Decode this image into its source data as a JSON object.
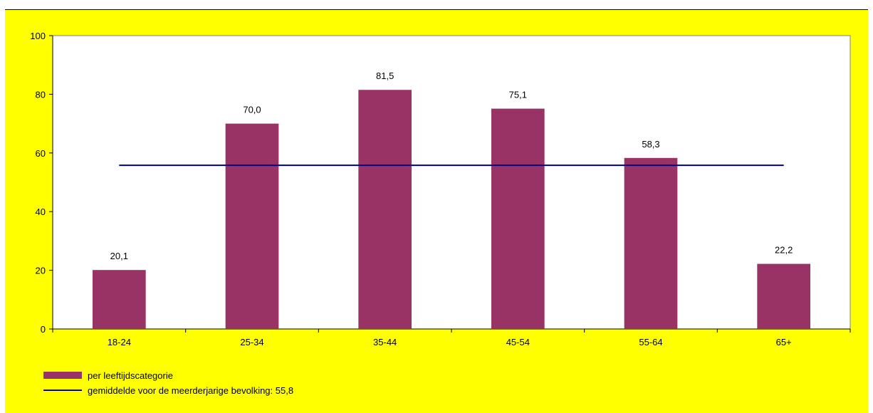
{
  "chart_data": {
    "type": "bar",
    "categories": [
      "18-24",
      "25-34",
      "35-44",
      "45-54",
      "55-64",
      "65+"
    ],
    "series": [
      {
        "name": "per leeftijdscategorie",
        "values": [
          20.1,
          70.0,
          81.5,
          75.1,
          58.3,
          22.2
        ]
      }
    ],
    "data_labels": [
      "20,1",
      "70,0",
      "81,5",
      "75,1",
      "58,3",
      "22,2"
    ],
    "reference_line": {
      "name": "gemiddelde voor de meerderjarige bevolking: 55,8",
      "value": 55.8
    },
    "y_ticks": [
      "0",
      "20",
      "40",
      "60",
      "80",
      "100"
    ],
    "ylim": [
      0,
      100
    ],
    "title": "",
    "xlabel": "",
    "ylabel": "",
    "grid": false,
    "legend_position": "bottom-left"
  },
  "colors": {
    "background": "#ffff00",
    "plot_area": "#ffffff",
    "bar": "#993366",
    "line": "#000080"
  },
  "legend": {
    "bar_label": "per leeftijdscategorie",
    "line_label": "gemiddelde voor de meerderjarige bevolking: 55,8"
  }
}
